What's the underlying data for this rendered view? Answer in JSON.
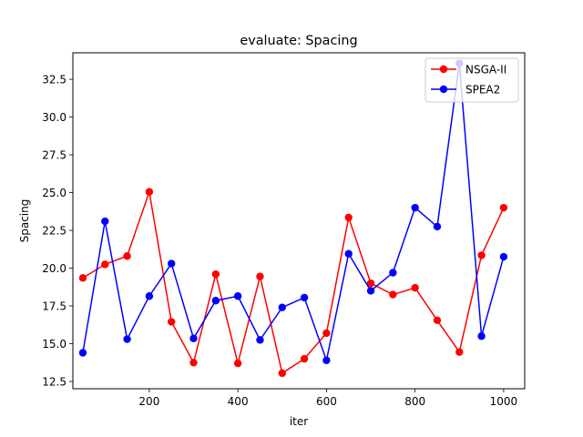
{
  "chart_data": {
    "type": "line",
    "title": "evaluate: Spacing",
    "xlabel": "iter",
    "ylabel": "Spacing",
    "xlim": [
      27.5,
      1047.5
    ],
    "ylim": [
      12.02,
      34.25
    ],
    "xticks": [
      200,
      400,
      600,
      800,
      1000
    ],
    "yticks": [
      12.5,
      15.0,
      17.5,
      20.0,
      22.5,
      25.0,
      27.5,
      30.0,
      32.5
    ],
    "ytick_labels": [
      "12.5",
      "15.0",
      "17.5",
      "20.0",
      "22.5",
      "25.0",
      "27.5",
      "30.0",
      "32.5"
    ],
    "grid": false,
    "legend_position": "top-right",
    "x": [
      50,
      100,
      150,
      200,
      250,
      300,
      350,
      400,
      450,
      500,
      550,
      600,
      650,
      700,
      750,
      800,
      850,
      900,
      950,
      1000
    ],
    "series": [
      {
        "name": "NSGA-II",
        "color": "#ff0000",
        "values": [
          19.35,
          20.25,
          20.8,
          25.05,
          16.45,
          13.75,
          19.6,
          13.7,
          19.45,
          13.05,
          14.0,
          15.7,
          23.35,
          19.0,
          18.25,
          18.7,
          16.55,
          14.45,
          20.85,
          24.0
        ]
      },
      {
        "name": "SPEA2",
        "color": "#0000ff",
        "values": [
          14.4,
          23.1,
          15.3,
          18.15,
          20.3,
          15.35,
          17.85,
          18.15,
          15.25,
          17.4,
          18.05,
          13.9,
          20.95,
          18.5,
          19.7,
          24.0,
          22.75,
          33.55,
          15.5,
          20.75
        ]
      }
    ]
  }
}
